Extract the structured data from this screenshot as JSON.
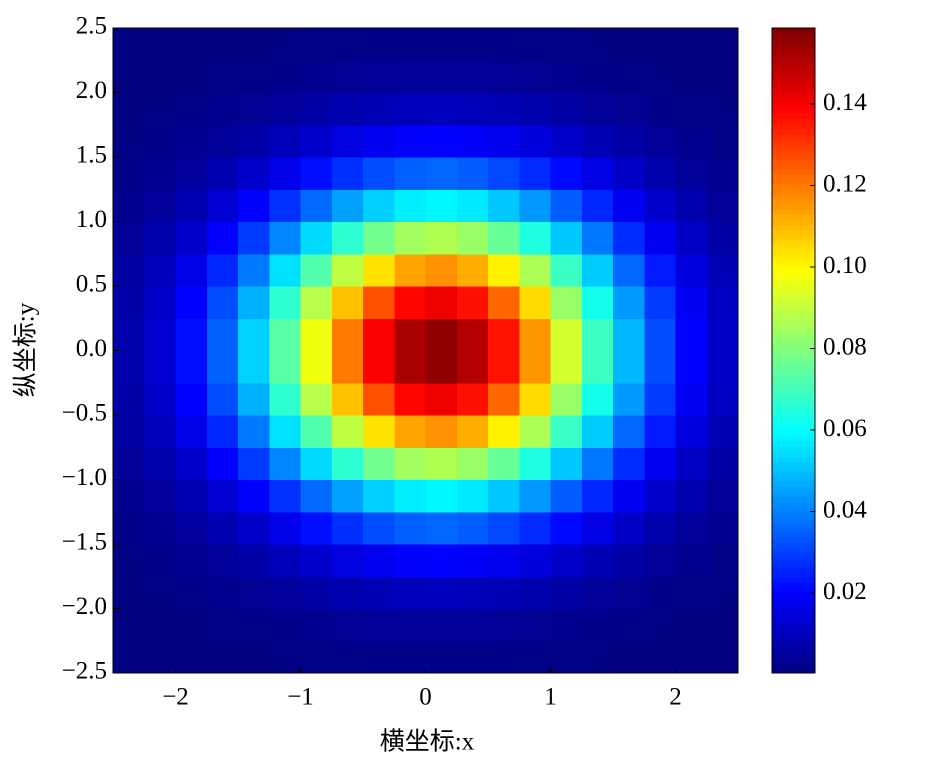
{
  "chart_data": {
    "type": "heatmap",
    "xlabel": "横坐标:x",
    "ylabel": "纵坐标:y",
    "x": [
      -2.375,
      -2.125,
      -1.875,
      -1.625,
      -1.375,
      -1.125,
      -0.875,
      -0.625,
      -0.375,
      -0.125,
      0.125,
      0.375,
      0.625,
      0.875,
      1.125,
      1.375,
      1.625,
      1.875,
      2.125,
      2.375
    ],
    "y": [
      -2.375,
      -2.125,
      -1.875,
      -1.625,
      -1.375,
      -1.125,
      -0.875,
      -0.625,
      -0.375,
      -0.125,
      0.125,
      0.375,
      0.625,
      0.875,
      1.125,
      1.375,
      1.625,
      1.875,
      2.125,
      2.375
    ],
    "z": [
      [
        0.0001,
        0.0002,
        0.0003,
        0.0004,
        0.0007,
        0.0009,
        0.0012,
        0.0015,
        0.0017,
        0.0019,
        0.0019,
        0.0019,
        0.0017,
        0.0014,
        0.0011,
        0.0009,
        0.0006,
        0.0004,
        0.0002,
        0.0001
      ],
      [
        0.0002,
        0.0004,
        0.0007,
        0.0011,
        0.0016,
        0.0022,
        0.0029,
        0.0036,
        0.0042,
        0.0045,
        0.0047,
        0.0045,
        0.0041,
        0.0034,
        0.0028,
        0.0021,
        0.0015,
        0.001,
        0.0006,
        0.0003
      ],
      [
        0.0005,
        0.0009,
        0.0014,
        0.0023,
        0.0034,
        0.0048,
        0.0063,
        0.0078,
        0.009,
        0.0098,
        0.0101,
        0.0097,
        0.0088,
        0.0075,
        0.006,
        0.0045,
        0.0032,
        0.0021,
        0.0013,
        0.0008
      ],
      [
        0.0009,
        0.0017,
        0.0029,
        0.0045,
        0.0068,
        0.0095,
        0.0125,
        0.0155,
        0.018,
        0.0196,
        0.0201,
        0.0194,
        0.0175,
        0.0149,
        0.0119,
        0.0089,
        0.0063,
        0.0042,
        0.0026,
        0.0015
      ],
      [
        0.0017,
        0.003,
        0.0051,
        0.0081,
        0.0121,
        0.017,
        0.0224,
        0.0277,
        0.0321,
        0.0351,
        0.036,
        0.0347,
        0.0314,
        0.0267,
        0.0213,
        0.016,
        0.0113,
        0.0075,
        0.0046,
        0.0027
      ],
      [
        0.0027,
        0.005,
        0.0084,
        0.0133,
        0.0198,
        0.0278,
        0.0366,
        0.0452,
        0.0525,
        0.0573,
        0.0588,
        0.0566,
        0.0512,
        0.0436,
        0.0348,
        0.0261,
        0.0184,
        0.0122,
        0.0076,
        0.0044
      ],
      [
        0.0041,
        0.0073,
        0.0124,
        0.0196,
        0.0293,
        0.041,
        0.0541,
        0.0668,
        0.0776,
        0.0847,
        0.0869,
        0.0837,
        0.0757,
        0.0644,
        0.0514,
        0.0386,
        0.0272,
        0.018,
        0.0112,
        0.0065
      ],
      [
        0.0054,
        0.0098,
        0.0166,
        0.0263,
        0.0392,
        0.0549,
        0.0724,
        0.0895,
        0.1039,
        0.1135,
        0.1164,
        0.1121,
        0.1014,
        0.0863,
        0.0688,
        0.0517,
        0.0364,
        0.0241,
        0.015,
        0.0088
      ],
      [
        0.0066,
        0.0119,
        0.0202,
        0.032,
        0.0477,
        0.0668,
        0.0881,
        0.1089,
        0.1265,
        0.1381,
        0.1416,
        0.1364,
        0.1233,
        0.1049,
        0.0837,
        0.0629,
        0.0443,
        0.0293,
        0.0183,
        0.0106
      ],
      [
        0.0073,
        0.0131,
        0.0222,
        0.0353,
        0.0526,
        0.0737,
        0.0971,
        0.12,
        0.1394,
        0.1522,
        0.1561,
        0.1503,
        0.136,
        0.1157,
        0.0923,
        0.0693,
        0.0489,
        0.0323,
        0.0201,
        0.0117
      ],
      [
        0.0073,
        0.0131,
        0.0222,
        0.0353,
        0.0526,
        0.0737,
        0.0971,
        0.12,
        0.1394,
        0.1522,
        0.1561,
        0.1503,
        0.136,
        0.1157,
        0.0923,
        0.0693,
        0.0489,
        0.0323,
        0.0201,
        0.0117
      ],
      [
        0.0066,
        0.0119,
        0.0202,
        0.032,
        0.0477,
        0.0668,
        0.0881,
        0.1089,
        0.1265,
        0.1381,
        0.1416,
        0.1364,
        0.1233,
        0.1049,
        0.0837,
        0.0629,
        0.0443,
        0.0293,
        0.0183,
        0.0106
      ],
      [
        0.0054,
        0.0098,
        0.0166,
        0.0263,
        0.0392,
        0.0549,
        0.0724,
        0.0895,
        0.1039,
        0.1135,
        0.1164,
        0.1121,
        0.1014,
        0.0863,
        0.0688,
        0.0517,
        0.0364,
        0.0241,
        0.015,
        0.0088
      ],
      [
        0.0041,
        0.0073,
        0.0124,
        0.0196,
        0.0293,
        0.041,
        0.0541,
        0.0668,
        0.0776,
        0.0847,
        0.0869,
        0.0837,
        0.0757,
        0.0644,
        0.0514,
        0.0386,
        0.0272,
        0.018,
        0.0112,
        0.0065
      ],
      [
        0.0027,
        0.005,
        0.0084,
        0.0133,
        0.0198,
        0.0278,
        0.0366,
        0.0452,
        0.0525,
        0.0573,
        0.0588,
        0.0566,
        0.0512,
        0.0436,
        0.0348,
        0.0261,
        0.0184,
        0.0122,
        0.0076,
        0.0044
      ],
      [
        0.0017,
        0.003,
        0.0051,
        0.0081,
        0.0121,
        0.017,
        0.0224,
        0.0277,
        0.0321,
        0.0351,
        0.036,
        0.0347,
        0.0314,
        0.0267,
        0.0213,
        0.016,
        0.0113,
        0.0075,
        0.0046,
        0.0027
      ],
      [
        0.0009,
        0.0017,
        0.0029,
        0.0045,
        0.0068,
        0.0095,
        0.0125,
        0.0155,
        0.018,
        0.0196,
        0.0201,
        0.0194,
        0.0175,
        0.0149,
        0.0119,
        0.0089,
        0.0063,
        0.0042,
        0.0026,
        0.0015
      ],
      [
        0.0005,
        0.0009,
        0.0014,
        0.0023,
        0.0034,
        0.0048,
        0.0063,
        0.0078,
        0.009,
        0.0098,
        0.0101,
        0.0097,
        0.0088,
        0.0075,
        0.006,
        0.0045,
        0.0032,
        0.0021,
        0.0013,
        0.0008
      ],
      [
        0.0002,
        0.0004,
        0.0007,
        0.0011,
        0.0016,
        0.0022,
        0.0029,
        0.0036,
        0.0042,
        0.0045,
        0.0047,
        0.0045,
        0.0041,
        0.0034,
        0.0028,
        0.0021,
        0.0015,
        0.001,
        0.0006,
        0.0003
      ],
      [
        0.0001,
        0.0002,
        0.0003,
        0.0004,
        0.0007,
        0.0009,
        0.0012,
        0.0015,
        0.0017,
        0.0019,
        0.0019,
        0.0019,
        0.0017,
        0.0014,
        0.0011,
        0.0009,
        0.0006,
        0.0004,
        0.0002,
        0.0001
      ]
    ],
    "colormap": "jet",
    "xlim": [
      -2.5,
      2.5
    ],
    "ylim": [
      -2.5,
      2.5
    ],
    "xticks": [
      {
        "value": -2,
        "label": "−2"
      },
      {
        "value": -1,
        "label": "−1"
      },
      0,
      1,
      2
    ],
    "yticks": [
      {
        "value": -2.5,
        "label": "−2.5"
      },
      {
        "value": -2,
        "label": "−2.0"
      },
      {
        "value": -1.5,
        "label": "−1.5"
      },
      {
        "value": -1,
        "label": "−1.0"
      },
      {
        "value": -0.5,
        "label": "−0.5"
      },
      {
        "value": 0,
        "label": "0.0"
      },
      0.5,
      {
        "value": 1,
        "label": "1.0"
      },
      1.5,
      {
        "value": 2,
        "label": "2.0"
      },
      2.5
    ],
    "clim": [
      0.0004,
      0.1587
    ],
    "cticks": [
      0.02,
      0.04,
      0.06,
      0.08,
      {
        "value": 0.1,
        "label": "0.10"
      },
      0.12,
      0.14
    ]
  }
}
